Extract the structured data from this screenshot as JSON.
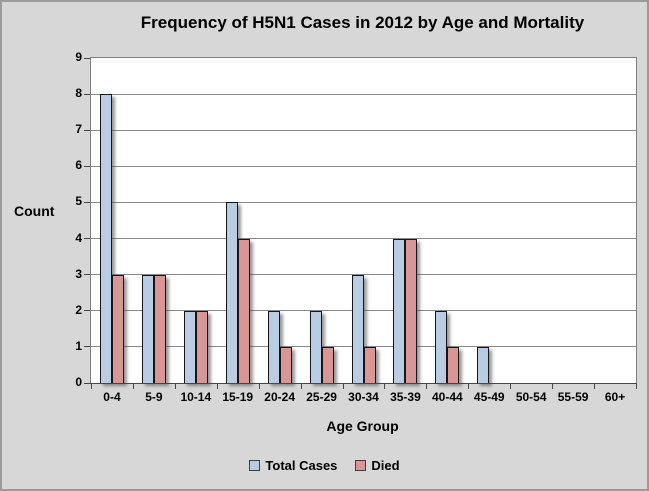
{
  "window": {
    "background": "#d7d7d7",
    "border_color": "#9b9b9b"
  },
  "chart_data": {
    "type": "bar",
    "title": "Frequency of H5N1 Cases in 2012 by Age and Mortality",
    "xlabel": "Age Group",
    "ylabel": "Count",
    "categories": [
      "0-4",
      "5-9",
      "10-14",
      "15-19",
      "20-24",
      "25-29",
      "30-34",
      "35-39",
      "40-44",
      "45-49",
      "50-54",
      "55-59",
      "60+"
    ],
    "series": [
      {
        "name": "Total Cases",
        "color": "#b8cce4",
        "values": [
          8,
          3,
          2,
          5,
          2,
          2,
          3,
          4,
          2,
          1,
          0,
          0,
          0
        ]
      },
      {
        "name": "Died",
        "color": "#d99694",
        "values": [
          3,
          3,
          2,
          4,
          1,
          1,
          1,
          4,
          1,
          0,
          0,
          0,
          0
        ]
      }
    ],
    "ylim": [
      0,
      9
    ],
    "yticks": [
      0,
      1,
      2,
      3,
      4,
      5,
      6,
      7,
      8,
      9
    ],
    "grid": true,
    "legend_position": "bottom",
    "plot_bg": "#ffffff",
    "gridline_color": "#8a8a8a",
    "axis_color": "#474747",
    "bar_border_color": "#161616",
    "text_color": "#000000"
  }
}
